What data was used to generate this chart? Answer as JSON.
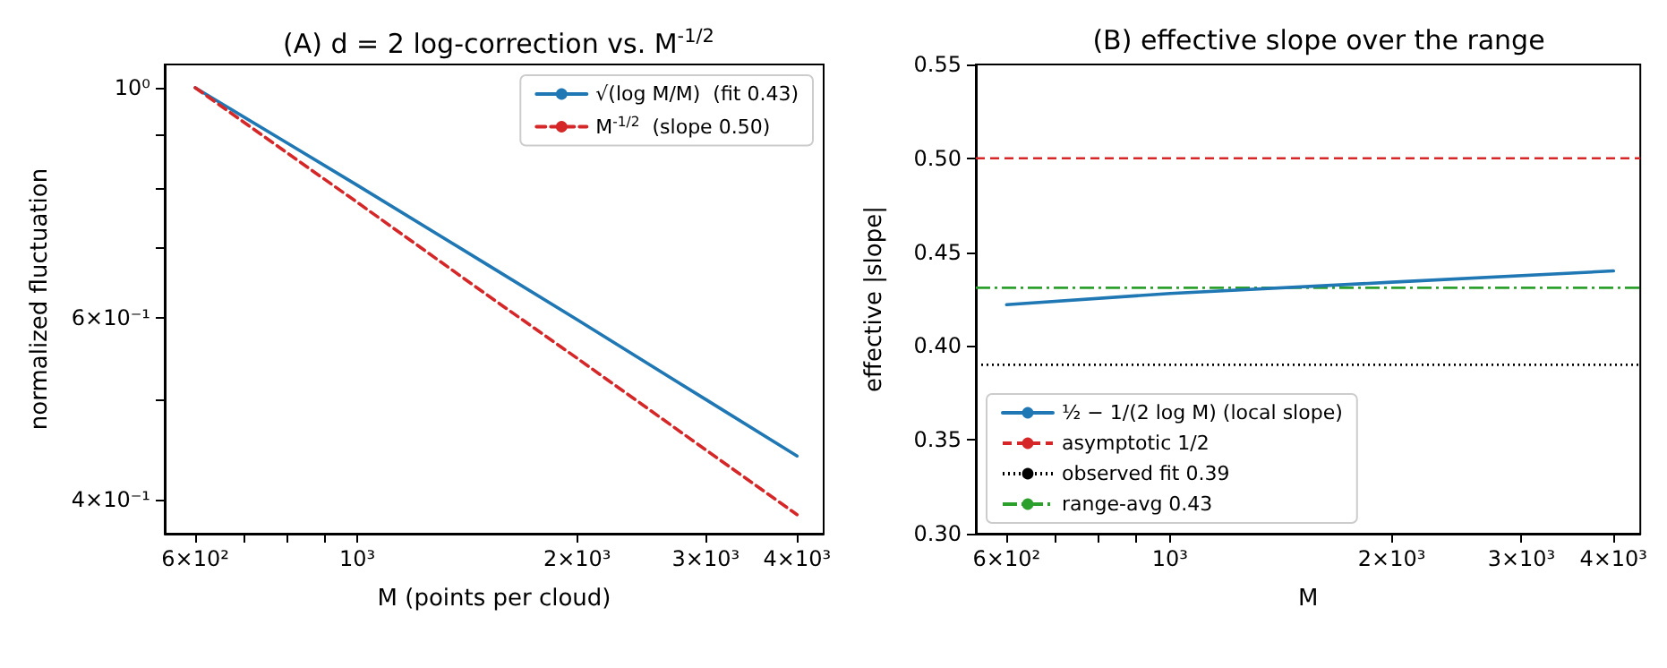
{
  "chart_data": [
    {
      "type": "line",
      "title": "(A) d = 2 log-correction vs. M$^{-1/2}$",
      "xlabel": "M (points per cloud)",
      "ylabel": "normalized fluctuation",
      "x": [
        600,
        800,
        1000,
        1500,
        2000,
        3000,
        4000
      ],
      "series": [
        {
          "name": "√(log M/M)  (fit 0.43)",
          "color": "#1f77b4",
          "line_style": "solid",
          "values": [
            1.0,
            0.885,
            0.805,
            0.676,
            0.597,
            0.5,
            0.441
          ]
        },
        {
          "name": "M$^{-1/2}$  (slope 0.50)",
          "color": "#d62728",
          "line_style": "dashed",
          "values": [
            1.0,
            0.866,
            0.775,
            0.632,
            0.548,
            0.447,
            0.387
          ]
        }
      ],
      "log": "xy",
      "xlim": [
        545,
        4350
      ],
      "ylim": [
        0.371,
        1.053
      ],
      "xticks": [
        {
          "value": 600,
          "label": "6×10²"
        },
        {
          "value": 700,
          "label": null
        },
        {
          "value": 800,
          "label": null
        },
        {
          "value": 900,
          "label": null
        },
        {
          "value": 1000,
          "label": "10³"
        },
        {
          "value": 2000,
          "label": "2×10³"
        },
        {
          "value": 3000,
          "label": "3×10³"
        },
        {
          "value": 4000,
          "label": "4×10³"
        }
      ],
      "yticks": [
        {
          "value": 0.4,
          "label": "4×10⁻¹"
        },
        {
          "value": 0.5,
          "label": null
        },
        {
          "value": 0.6,
          "label": "6×10⁻¹"
        },
        {
          "value": 0.7,
          "label": null
        },
        {
          "value": 0.8,
          "label": null
        },
        {
          "value": 0.9,
          "label": null
        },
        {
          "value": 1,
          "label": "10⁰"
        }
      ],
      "legend": "top right",
      "marker": "none"
    },
    {
      "type": "line",
      "title": "(B) effective slope over the range",
      "xlabel": "M",
      "ylabel": "effective |slope|",
      "x": [
        600,
        1000,
        2000,
        4000
      ],
      "series": [
        {
          "name": "½ − 1/(2 log M) (local slope)",
          "color": "#1f77b4",
          "line_style": "solid",
          "values": [
            0.422,
            0.428,
            0.434,
            0.44
          ]
        }
      ],
      "ref_lines": [
        {
          "axis": "y",
          "value": 0.5,
          "label": "asymptotic 1/2",
          "color": "#d62728",
          "line_style": "dashed"
        },
        {
          "axis": "y",
          "value": 0.39,
          "label": "observed fit 0.39",
          "color": "#000000",
          "line_style": "dotted"
        },
        {
          "axis": "y",
          "value": 0.431,
          "label": "range-avg 0.43",
          "color": "#2ca02c",
          "line_style": "dashdot"
        }
      ],
      "log": "x",
      "xlim": [
        545,
        4350
      ],
      "ylim": [
        0.3,
        0.55
      ],
      "xticks": [
        {
          "value": 600,
          "label": "6×10²"
        },
        {
          "value": 700,
          "label": null
        },
        {
          "value": 800,
          "label": null
        },
        {
          "value": 900,
          "label": null
        },
        {
          "value": 1000,
          "label": "10³"
        },
        {
          "value": 2000,
          "label": "2×10³"
        },
        {
          "value": 3000,
          "label": "3×10³"
        },
        {
          "value": 4000,
          "label": "4×10³"
        }
      ],
      "yticks": [
        {
          "value": 0.3,
          "label": "0.30"
        },
        0.35,
        {
          "value": 0.4,
          "label": "0.40"
        },
        0.45,
        {
          "value": 0.5,
          "label": "0.50"
        },
        0.55
      ],
      "legend": "bottom left",
      "marker": "none"
    }
  ]
}
